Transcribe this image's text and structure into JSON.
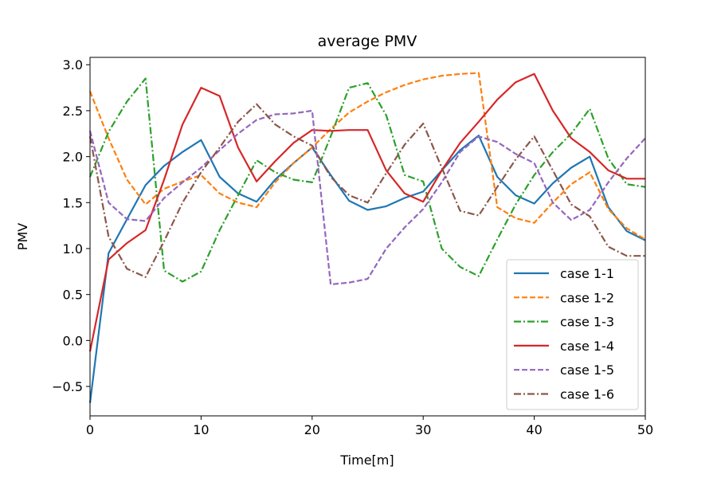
{
  "chart_data": {
    "type": "line",
    "title": "average PMV",
    "xlabel": "Time[m]",
    "ylabel": "PMV",
    "xlim": [
      0,
      50
    ],
    "ylim": [
      -0.82,
      3.08
    ],
    "xticks": [
      0,
      10,
      20,
      30,
      40,
      50
    ],
    "xtick_labels": [
      "0",
      "10",
      "20",
      "30",
      "40",
      "50"
    ],
    "yticks": [
      -0.5,
      0.0,
      0.5,
      1.0,
      1.5,
      2.0,
      2.5,
      3.0
    ],
    "ytick_labels": [
      "−0.5",
      "0.0",
      "0.5",
      "1.0",
      "1.5",
      "2.0",
      "2.5",
      "3.0"
    ],
    "grid": false,
    "legend_position": "lower-right",
    "x": [
      0,
      1.67,
      3.33,
      5,
      6.67,
      8.33,
      10,
      11.67,
      13.33,
      15,
      16.67,
      18.33,
      20,
      21.67,
      23.33,
      25,
      26.67,
      28.33,
      30,
      31.67,
      33.33,
      35,
      36.67,
      38.33,
      40,
      41.67,
      43.33,
      45,
      46.67,
      48.33,
      50
    ],
    "series": [
      {
        "name": "case 1-1",
        "color": "#1f77b4",
        "dash": "solid",
        "values": [
          -0.68,
          0.95,
          1.32,
          1.69,
          1.9,
          2.05,
          2.18,
          1.78,
          1.6,
          1.51,
          1.75,
          1.93,
          2.1,
          1.8,
          1.52,
          1.42,
          1.46,
          1.55,
          1.62,
          1.85,
          2.07,
          2.23,
          1.78,
          1.58,
          1.49,
          1.71,
          1.88,
          2.0,
          1.45,
          1.19,
          1.09
        ]
      },
      {
        "name": "case 1-2",
        "color": "#ff7f0e",
        "dash": "dashed",
        "values": [
          2.71,
          2.2,
          1.75,
          1.48,
          1.65,
          1.73,
          1.8,
          1.6,
          1.5,
          1.45,
          1.72,
          1.93,
          2.1,
          2.3,
          2.48,
          2.6,
          2.7,
          2.78,
          2.84,
          2.88,
          2.9,
          2.91,
          1.45,
          1.33,
          1.28,
          1.5,
          1.7,
          1.83,
          1.43,
          1.22,
          1.1
        ]
      },
      {
        "name": "case 1-3",
        "color": "#2ca02c",
        "dash": "dashdot",
        "values": [
          1.78,
          2.27,
          2.6,
          2.85,
          0.76,
          0.64,
          0.75,
          1.2,
          1.58,
          1.96,
          1.83,
          1.75,
          1.72,
          2.22,
          2.75,
          2.8,
          2.45,
          1.8,
          1.73,
          1.0,
          0.8,
          0.7,
          1.1,
          1.48,
          1.8,
          2.05,
          2.25,
          2.52,
          1.98,
          1.7,
          1.67
        ]
      },
      {
        "name": "case 1-4",
        "color": "#d62728",
        "dash": "solid",
        "values": [
          -0.12,
          0.88,
          1.06,
          1.2,
          1.75,
          2.35,
          2.75,
          2.66,
          2.1,
          1.73,
          1.95,
          2.15,
          2.29,
          2.28,
          2.29,
          2.29,
          1.85,
          1.6,
          1.51,
          1.85,
          2.15,
          2.38,
          2.62,
          2.81,
          2.9,
          2.5,
          2.2,
          2.05,
          1.85,
          1.76,
          1.76
        ]
      },
      {
        "name": "case 1-5",
        "color": "#9467bd",
        "dash": "dashed",
        "values": [
          2.28,
          1.5,
          1.32,
          1.3,
          1.55,
          1.72,
          1.88,
          2.07,
          2.25,
          2.4,
          2.46,
          2.47,
          2.5,
          0.61,
          0.63,
          0.67,
          1.0,
          1.23,
          1.43,
          1.72,
          2.05,
          2.22,
          2.16,
          2.03,
          1.93,
          1.5,
          1.31,
          1.42,
          1.72,
          1.98,
          2.2
        ]
      },
      {
        "name": "case 1-6",
        "color": "#8c564b",
        "dash": "dashdot",
        "values": [
          2.22,
          1.13,
          0.78,
          0.69,
          1.08,
          1.5,
          1.83,
          2.1,
          2.38,
          2.57,
          2.35,
          2.22,
          2.12,
          1.78,
          1.58,
          1.5,
          1.82,
          2.13,
          2.36,
          1.88,
          1.41,
          1.36,
          1.67,
          1.97,
          2.22,
          1.85,
          1.48,
          1.35,
          1.02,
          0.92,
          0.92
        ]
      }
    ]
  }
}
